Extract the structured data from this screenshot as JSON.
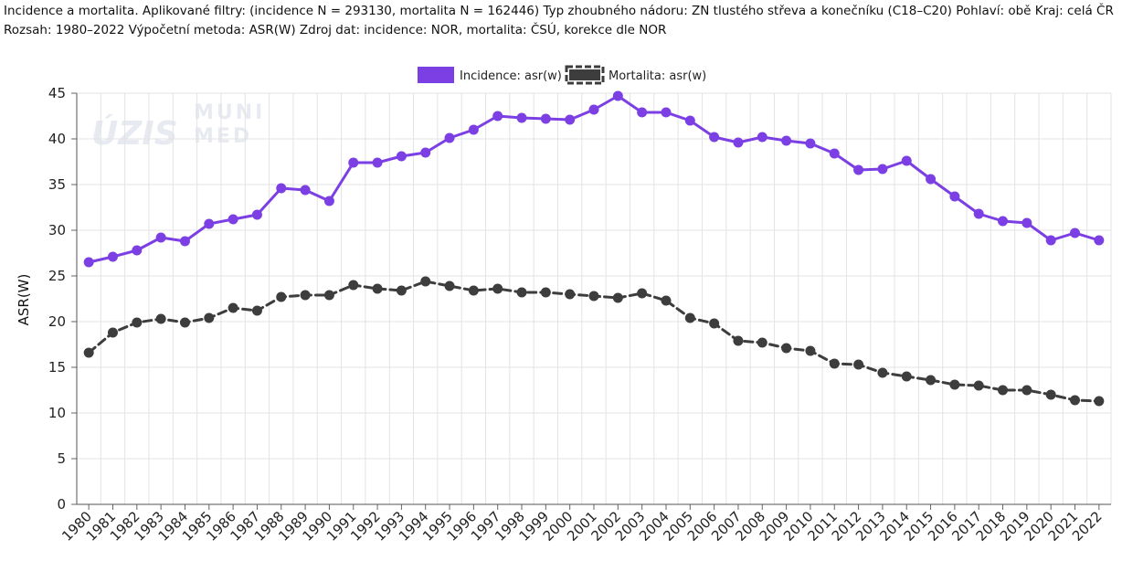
{
  "header": {
    "line1": "Incidence a mortalita. Aplikované filtry: (incidence N = 293130, mortalita N = 162446) Typ zhoubného nádoru: ZN tlustého střeva a konečníku (C18–C20) Pohlaví: obě Kraj: celá ČR",
    "line2": "Rozsah: 1980–2022 Výpočetní metoda: ASR(W) Zdroj dat: incidence: NOR, mortalita: ČSÚ, korekce dle NOR"
  },
  "watermark": {
    "logo1": "ÚZIS",
    "logo2_top": "MUNI",
    "logo2_bottom": "MED"
  },
  "chart_data": {
    "type": "line",
    "ylabel": "ASR(W)",
    "xlabel": "",
    "ylim": [
      0,
      45
    ],
    "yticks": [
      0,
      5,
      10,
      15,
      20,
      25,
      30,
      35,
      40,
      45
    ],
    "grid": true,
    "legend_position": "top-center",
    "categories": [
      "1980",
      "1981",
      "1982",
      "1983",
      "1984",
      "1985",
      "1986",
      "1987",
      "1988",
      "1989",
      "1990",
      "1991",
      "1992",
      "1993",
      "1994",
      "1995",
      "1996",
      "1997",
      "1998",
      "1999",
      "2000",
      "2001",
      "2002",
      "2003",
      "2004",
      "2005",
      "2006",
      "2007",
      "2008",
      "2009",
      "2010",
      "2011",
      "2012",
      "2013",
      "2014",
      "2015",
      "2016",
      "2017",
      "2018",
      "2019",
      "2020",
      "2021",
      "2022"
    ],
    "series": [
      {
        "name": "Incidence: asr(w)",
        "color": "#7b3fe4",
        "style": "solid",
        "values": [
          26.5,
          27.1,
          27.8,
          29.2,
          28.8,
          30.7,
          31.2,
          31.7,
          34.6,
          34.4,
          33.2,
          37.4,
          37.4,
          38.1,
          38.5,
          40.1,
          41.0,
          42.5,
          42.3,
          42.2,
          42.1,
          43.2,
          44.7,
          42.9,
          42.9,
          42.0,
          40.2,
          39.6,
          40.2,
          39.8,
          39.5,
          38.4,
          36.6,
          36.7,
          37.6,
          35.6,
          33.7,
          31.8,
          31.0,
          30.8,
          28.9,
          29.7,
          28.9
        ]
      },
      {
        "name": "Mortalita: asr(w)",
        "color": "#3d3d3d",
        "style": "dashed",
        "values": [
          16.6,
          18.8,
          19.9,
          20.3,
          19.9,
          20.4,
          21.5,
          21.2,
          22.7,
          22.9,
          22.9,
          24.0,
          23.6,
          23.4,
          24.4,
          23.9,
          23.4,
          23.6,
          23.2,
          23.2,
          23.0,
          22.8,
          22.6,
          23.1,
          22.3,
          20.4,
          19.8,
          17.9,
          17.7,
          17.1,
          16.8,
          15.4,
          15.3,
          14.4,
          14.0,
          13.6,
          13.1,
          13.0,
          12.5,
          12.5,
          12.0,
          11.4,
          11.3
        ]
      }
    ]
  }
}
